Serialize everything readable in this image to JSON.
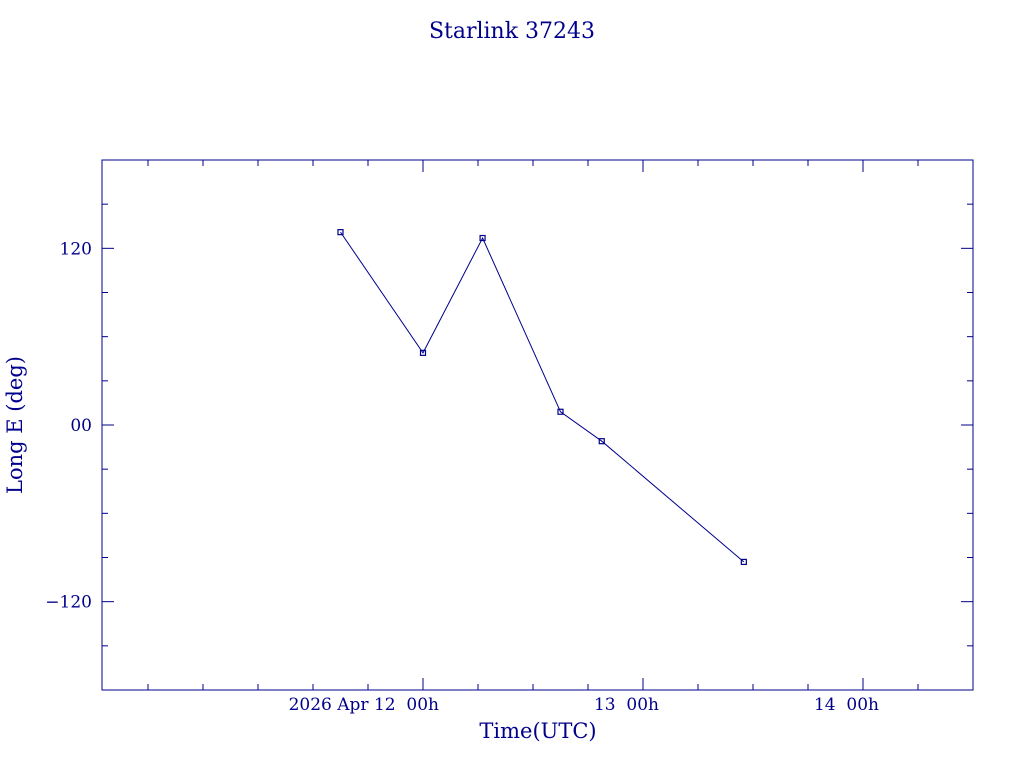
{
  "chart_data": {
    "type": "line",
    "title": "Starlink 37243",
    "xlabel": "Time(UTC)",
    "ylabel": "Long E (deg)",
    "x_axis": {
      "ticks": [
        {
          "at": "2026-04-12T00:00Z",
          "label": "2026 Apr 12  00h"
        },
        {
          "at": "2026-04-13T00:00Z",
          "label": "13  00h"
        },
        {
          "at": "2026-04-14T00:00Z",
          "label": "14  00h"
        }
      ]
    },
    "y_axis": {
      "range": [
        -180,
        180
      ],
      "ticks": [
        {
          "value": 120,
          "label": "120"
        },
        {
          "value": 0,
          "label": "00"
        },
        {
          "value": -120,
          "label": "−120"
        }
      ]
    },
    "series": [
      {
        "points": [
          {
            "t": "2026-04-11T15:00Z",
            "y": 131
          },
          {
            "t": "2026-04-12T00:00Z",
            "y": 49
          },
          {
            "t": "2026-04-12T06:30Z",
            "y": 127
          },
          {
            "t": "2026-04-12T15:00Z",
            "y": 9
          },
          {
            "t": "2026-04-12T19:30Z",
            "y": -11
          },
          {
            "t": "2026-04-13T11:00Z",
            "y": -93
          }
        ]
      }
    ],
    "colors": {
      "foreground": "#00008b",
      "background": "#ffffff"
    },
    "grid": false
  }
}
